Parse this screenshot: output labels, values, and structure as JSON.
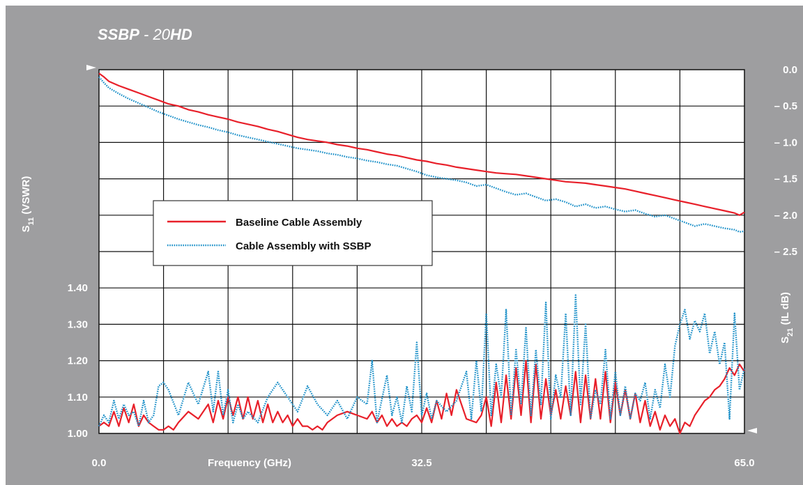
{
  "chart_data": {
    "type": "line",
    "title_bold": "SSBP",
    "title_mid": " - 20",
    "title_end": "HD",
    "xlabel": "Frequency (GHz)",
    "x_ticks": [
      "0.0",
      "32.5",
      "65.0"
    ],
    "xlim": [
      0,
      65
    ],
    "left_axis": {
      "label_main": "S",
      "label_sub": "11",
      "label_tail": " (VSWR)",
      "ticks": [
        "1.40",
        "1.30",
        "1.20",
        "1.10",
        "1.00"
      ],
      "ylim": [
        1.0,
        2.0
      ]
    },
    "right_axis": {
      "label_main": "S",
      "label_sub": "21",
      "label_tail": " (IL dB)",
      "ticks": [
        "0.0",
        "– 0.5",
        "– 1.0",
        "– 1.5",
        "– 2.0",
        "– 2.5"
      ],
      "ylim": [
        -5.0,
        0.0
      ]
    },
    "grid": true,
    "legend_position": "middle-left",
    "series": [
      {
        "name": "Baseline Cable Assembly",
        "axis": "right",
        "quantity": "insertion_loss_dB",
        "color": "#e8202a",
        "style": "solid",
        "x": [
          0.0,
          0.5,
          1.0,
          2.0,
          3.0,
          4.0,
          5.0,
          6.0,
          7.0,
          8.0,
          9.0,
          10.0,
          11.0,
          12.0,
          13.0,
          14.0,
          15.0,
          16.0,
          17.0,
          18.0,
          19.0,
          20.0,
          21.0,
          22.0,
          23.0,
          24.0,
          25.0,
          26.0,
          27.0,
          28.0,
          29.0,
          30.0,
          31.0,
          32.0,
          33.0,
          34.0,
          35.0,
          36.0,
          37.0,
          38.0,
          39.0,
          40.0,
          41.0,
          42.0,
          43.0,
          44.0,
          45.0,
          46.0,
          47.0,
          48.0,
          49.0,
          50.0,
          51.0,
          52.0,
          53.0,
          54.0,
          55.0,
          56.0,
          57.0,
          58.0,
          59.0,
          60.0,
          61.0,
          62.0,
          63.0,
          64.0,
          64.5,
          65.0
        ],
        "y": [
          -0.05,
          -0.1,
          -0.16,
          -0.22,
          -0.27,
          -0.32,
          -0.37,
          -0.42,
          -0.47,
          -0.5,
          -0.55,
          -0.58,
          -0.62,
          -0.65,
          -0.68,
          -0.72,
          -0.75,
          -0.78,
          -0.82,
          -0.85,
          -0.89,
          -0.93,
          -0.96,
          -0.98,
          -1.0,
          -1.03,
          -1.05,
          -1.08,
          -1.1,
          -1.13,
          -1.16,
          -1.18,
          -1.21,
          -1.24,
          -1.26,
          -1.29,
          -1.31,
          -1.34,
          -1.36,
          -1.38,
          -1.4,
          -1.42,
          -1.43,
          -1.44,
          -1.46,
          -1.48,
          -1.5,
          -1.52,
          -1.54,
          -1.55,
          -1.56,
          -1.58,
          -1.6,
          -1.62,
          -1.64,
          -1.67,
          -1.7,
          -1.73,
          -1.76,
          -1.79,
          -1.82,
          -1.85,
          -1.88,
          -1.91,
          -1.94,
          -1.97,
          -2.0,
          -1.96
        ]
      },
      {
        "name": "Cable Assembly with SSBP",
        "axis": "right",
        "quantity": "insertion_loss_dB",
        "color": "#1a8fc8",
        "style": "dotted",
        "x": [
          0.0,
          0.5,
          1.0,
          2.0,
          3.0,
          4.0,
          5.0,
          6.0,
          7.0,
          8.0,
          9.0,
          10.0,
          11.0,
          12.0,
          13.0,
          14.0,
          15.0,
          16.0,
          17.0,
          18.0,
          19.0,
          20.0,
          21.0,
          22.0,
          23.0,
          24.0,
          25.0,
          26.0,
          27.0,
          28.0,
          29.0,
          30.0,
          31.0,
          32.0,
          33.0,
          34.0,
          35.0,
          36.0,
          37.0,
          38.0,
          39.0,
          40.0,
          41.0,
          42.0,
          43.0,
          44.0,
          45.0,
          46.0,
          47.0,
          48.0,
          49.0,
          50.0,
          51.0,
          52.0,
          53.0,
          54.0,
          55.0,
          56.0,
          57.0,
          58.0,
          59.0,
          60.0,
          61.0,
          62.0,
          63.0,
          64.0,
          64.5,
          65.0
        ],
        "y": [
          -0.1,
          -0.18,
          -0.25,
          -0.33,
          -0.4,
          -0.46,
          -0.52,
          -0.58,
          -0.63,
          -0.68,
          -0.72,
          -0.76,
          -0.79,
          -0.83,
          -0.86,
          -0.9,
          -0.93,
          -0.96,
          -0.99,
          -1.02,
          -1.05,
          -1.08,
          -1.1,
          -1.12,
          -1.15,
          -1.17,
          -1.2,
          -1.22,
          -1.25,
          -1.27,
          -1.3,
          -1.32,
          -1.36,
          -1.4,
          -1.45,
          -1.48,
          -1.5,
          -1.52,
          -1.55,
          -1.6,
          -1.58,
          -1.63,
          -1.68,
          -1.72,
          -1.7,
          -1.75,
          -1.8,
          -1.78,
          -1.82,
          -1.88,
          -1.85,
          -1.9,
          -1.88,
          -1.92,
          -1.95,
          -1.93,
          -1.98,
          -2.02,
          -2.0,
          -2.05,
          -2.1,
          -2.15,
          -2.12,
          -2.15,
          -2.18,
          -2.2,
          -2.23,
          -2.22
        ]
      },
      {
        "name": "Baseline Cable Assembly",
        "axis": "left",
        "quantity": "VSWR",
        "color": "#e8202a",
        "style": "solid",
        "x": [
          0.0,
          0.5,
          1.0,
          1.5,
          2.0,
          2.5,
          3.0,
          3.5,
          4.0,
          4.5,
          5.0,
          5.5,
          6.0,
          6.5,
          7.0,
          7.5,
          8.0,
          9.0,
          10.0,
          11.0,
          11.5,
          12.0,
          12.5,
          13.0,
          13.5,
          14.0,
          14.5,
          15.0,
          15.5,
          16.0,
          16.5,
          17.0,
          17.5,
          18.0,
          18.5,
          19.0,
          19.5,
          20.0,
          20.5,
          21.0,
          21.5,
          22.0,
          22.5,
          23.0,
          24.0,
          25.0,
          26.0,
          27.0,
          27.5,
          28.0,
          28.5,
          29.0,
          29.5,
          30.0,
          30.5,
          31.0,
          31.5,
          32.0,
          32.5,
          33.0,
          33.5,
          34.0,
          34.5,
          35.0,
          35.5,
          36.0,
          37.0,
          38.0,
          38.5,
          39.0,
          39.5,
          40.0,
          40.5,
          41.0,
          41.5,
          42.0,
          42.5,
          43.0,
          43.5,
          44.0,
          44.5,
          45.0,
          45.5,
          46.0,
          46.5,
          47.0,
          47.5,
          48.0,
          48.5,
          49.0,
          49.5,
          50.0,
          50.5,
          51.0,
          51.5,
          52.0,
          52.5,
          53.0,
          53.5,
          54.0,
          54.5,
          55.0,
          55.5,
          56.0,
          56.5,
          57.0,
          57.5,
          58.0,
          58.5,
          59.0,
          59.5,
          60.0,
          60.5,
          61.0,
          61.5,
          62.0,
          62.5,
          63.0,
          63.5,
          64.0,
          64.5,
          65.0
        ],
        "y": [
          1.02,
          1.03,
          1.02,
          1.06,
          1.02,
          1.07,
          1.03,
          1.08,
          1.02,
          1.05,
          1.03,
          1.02,
          1.01,
          1.01,
          1.02,
          1.01,
          1.03,
          1.06,
          1.04,
          1.08,
          1.03,
          1.09,
          1.04,
          1.1,
          1.05,
          1.1,
          1.04,
          1.1,
          1.04,
          1.09,
          1.03,
          1.08,
          1.03,
          1.06,
          1.03,
          1.05,
          1.02,
          1.04,
          1.02,
          1.02,
          1.01,
          1.02,
          1.01,
          1.03,
          1.05,
          1.06,
          1.05,
          1.04,
          1.06,
          1.03,
          1.05,
          1.02,
          1.04,
          1.02,
          1.03,
          1.02,
          1.04,
          1.05,
          1.03,
          1.07,
          1.03,
          1.09,
          1.04,
          1.11,
          1.05,
          1.12,
          1.04,
          1.03,
          1.05,
          1.1,
          1.02,
          1.14,
          1.03,
          1.16,
          1.04,
          1.18,
          1.05,
          1.2,
          1.03,
          1.19,
          1.04,
          1.15,
          1.05,
          1.12,
          1.04,
          1.13,
          1.05,
          1.17,
          1.03,
          1.16,
          1.04,
          1.15,
          1.04,
          1.17,
          1.03,
          1.14,
          1.05,
          1.12,
          1.04,
          1.11,
          1.03,
          1.09,
          1.02,
          1.06,
          1.01,
          1.05,
          1.02,
          1.04,
          1.0,
          1.03,
          1.02,
          1.05,
          1.07,
          1.09,
          1.1,
          1.12,
          1.13,
          1.15,
          1.18,
          1.16,
          1.19,
          1.17
        ]
      },
      {
        "name": "Cable Assembly with SSBP",
        "axis": "left",
        "quantity": "VSWR",
        "color": "#1a8fc8",
        "style": "dotted",
        "x": [
          0.0,
          0.5,
          1.0,
          1.5,
          2.0,
          2.5,
          3.0,
          3.5,
          4.0,
          4.5,
          5.0,
          5.5,
          6.0,
          6.5,
          7.0,
          8.0,
          9.0,
          10.0,
          11.0,
          11.5,
          12.0,
          12.5,
          13.0,
          13.5,
          14.0,
          14.5,
          15.0,
          16.0,
          17.0,
          18.0,
          19.0,
          20.0,
          21.0,
          22.0,
          23.0,
          24.0,
          25.0,
          26.0,
          27.0,
          27.5,
          28.0,
          29.0,
          29.5,
          30.0,
          30.5,
          31.0,
          31.5,
          32.0,
          32.5,
          33.0,
          33.5,
          34.0,
          35.0,
          36.0,
          37.0,
          37.5,
          38.0,
          38.5,
          39.0,
          39.5,
          40.0,
          40.5,
          41.0,
          41.5,
          42.0,
          42.5,
          43.0,
          43.5,
          44.0,
          44.5,
          45.0,
          45.5,
          46.0,
          46.5,
          47.0,
          47.5,
          48.0,
          48.5,
          49.0,
          49.5,
          50.0,
          50.5,
          51.0,
          51.5,
          52.0,
          52.5,
          53.0,
          53.5,
          54.0,
          54.5,
          55.0,
          55.5,
          56.0,
          56.5,
          57.0,
          57.5,
          58.0,
          58.5,
          59.0,
          59.5,
          60.0,
          60.5,
          61.0,
          61.5,
          62.0,
          62.5,
          63.0,
          63.5,
          64.0,
          64.5,
          65.0
        ],
        "y": [
          1.02,
          1.05,
          1.03,
          1.09,
          1.04,
          1.08,
          1.05,
          1.06,
          1.02,
          1.09,
          1.03,
          1.05,
          1.13,
          1.14,
          1.12,
          1.05,
          1.14,
          1.08,
          1.17,
          1.06,
          1.17,
          1.05,
          1.12,
          1.03,
          1.08,
          1.04,
          1.06,
          1.03,
          1.1,
          1.14,
          1.1,
          1.06,
          1.13,
          1.08,
          1.05,
          1.09,
          1.04,
          1.1,
          1.08,
          1.2,
          1.03,
          1.16,
          1.05,
          1.1,
          1.03,
          1.13,
          1.06,
          1.25,
          1.05,
          1.11,
          1.04,
          1.09,
          1.06,
          1.09,
          1.17,
          1.04,
          1.2,
          1.06,
          1.33,
          1.05,
          1.19,
          1.1,
          1.34,
          1.05,
          1.23,
          1.08,
          1.29,
          1.05,
          1.23,
          1.08,
          1.36,
          1.04,
          1.16,
          1.1,
          1.33,
          1.05,
          1.38,
          1.08,
          1.3,
          1.04,
          1.12,
          1.08,
          1.23,
          1.04,
          1.17,
          1.05,
          1.13,
          1.04,
          1.11,
          1.09,
          1.14,
          1.04,
          1.12,
          1.07,
          1.19,
          1.1,
          1.24,
          1.3,
          1.34,
          1.26,
          1.31,
          1.28,
          1.33,
          1.22,
          1.28,
          1.19,
          1.25,
          1.04,
          1.33,
          1.12,
          1.18
        ]
      }
    ]
  }
}
